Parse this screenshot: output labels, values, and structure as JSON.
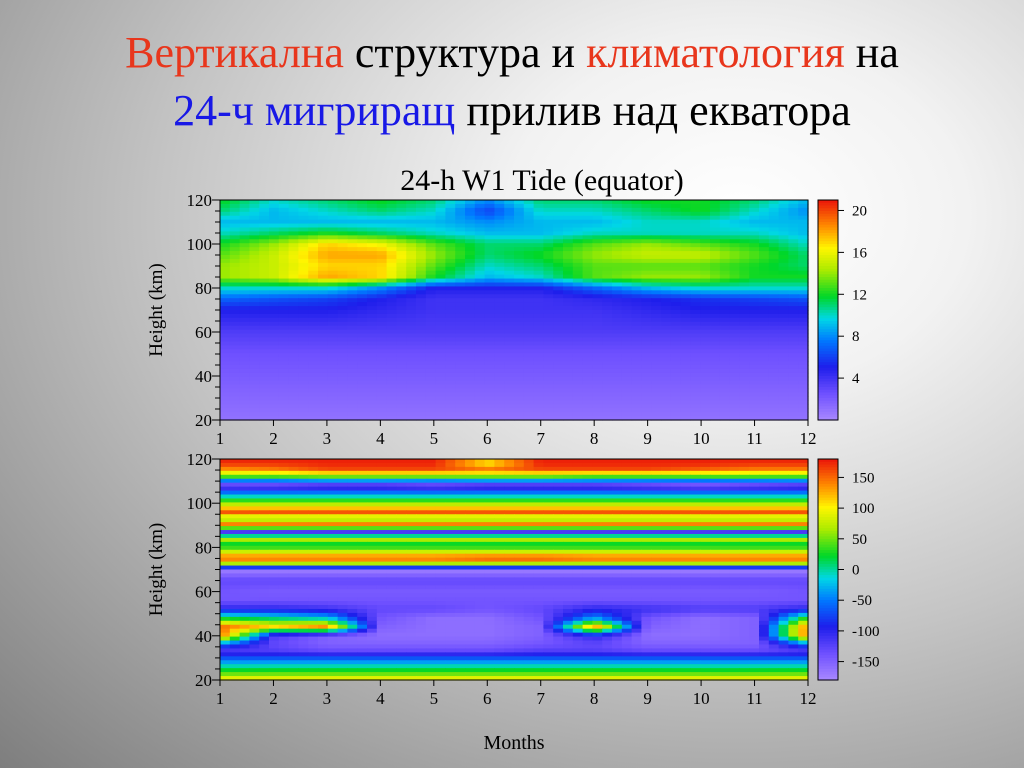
{
  "slide": {
    "title_line1": [
      {
        "text": "Вертикална",
        "color": "#e8361c"
      },
      {
        "text": " структура и ",
        "color": "#000000"
      },
      {
        "text": "климатология",
        "color": "#e8361c"
      },
      {
        "text": " на",
        "color": "#000000"
      }
    ],
    "title_line2": [
      {
        "text": "24-ч мигриращ",
        "color": "#1818e6"
      },
      {
        "text": " прилив над екватора",
        "color": "#000000"
      }
    ]
  },
  "chart_data": [
    {
      "type": "heatmap",
      "title": "24-h W1 Tide  (equator)",
      "xlabel": "",
      "ylabel": "Height  (km)",
      "x_ticks": [
        1,
        2,
        3,
        4,
        5,
        6,
        7,
        8,
        9,
        10,
        11,
        12
      ],
      "xlim": [
        1,
        12
      ],
      "y_ticks": [
        20,
        40,
        60,
        80,
        100,
        120
      ],
      "ylim": [
        20,
        120
      ],
      "colorbar": {
        "ticks": [
          4,
          8,
          12,
          16,
          20
        ],
        "range": [
          0,
          21
        ]
      },
      "quantity": "amplitude",
      "months": [
        1,
        2,
        3,
        4,
        5,
        6,
        7,
        8,
        9,
        10,
        11,
        12
      ],
      "heights": [
        20,
        30,
        40,
        50,
        60,
        70,
        75,
        80,
        85,
        90,
        95,
        100,
        105,
        110,
        115,
        120
      ],
      "values": [
        [
          1,
          1,
          1,
          1,
          1,
          1,
          1,
          1,
          1,
          1,
          1,
          1
        ],
        [
          1.5,
          1.5,
          1.5,
          1.5,
          1.5,
          1.5,
          1.5,
          1.5,
          1.5,
          1.5,
          1.5,
          1.5
        ],
        [
          2,
          2,
          2,
          2,
          2,
          2,
          2,
          2,
          2,
          2,
          2,
          2
        ],
        [
          2.5,
          2.5,
          2.5,
          2.5,
          2.5,
          2.5,
          2.5,
          2.5,
          2.5,
          2.5,
          2.5,
          2.5
        ],
        [
          3.5,
          3.5,
          3.5,
          3.5,
          3.5,
          3.5,
          3.5,
          3.5,
          3.5,
          3.5,
          3.5,
          3.5
        ],
        [
          5,
          5,
          5,
          4.5,
          4,
          4,
          4,
          4,
          4.5,
          5,
          5,
          5
        ],
        [
          7,
          6.5,
          6,
          5,
          4,
          4,
          4,
          4.5,
          5,
          5.5,
          6,
          6.5
        ],
        [
          10,
          10,
          10,
          8,
          5,
          5,
          5,
          7,
          9,
          10,
          10,
          10
        ],
        [
          14,
          15,
          18,
          17,
          12,
          9,
          10,
          13,
          14,
          14,
          12,
          12
        ],
        [
          14,
          15,
          17,
          17,
          13,
          10,
          11,
          13,
          13,
          13,
          12,
          11
        ],
        [
          13,
          15,
          18,
          18,
          14,
          11,
          12,
          14,
          15,
          15,
          13,
          11
        ],
        [
          12,
          14,
          17,
          16,
          13,
          11,
          11,
          13,
          14,
          13,
          12,
          10
        ],
        [
          10,
          11,
          12,
          11,
          10,
          9,
          9,
          10,
          10,
          10,
          10,
          9
        ],
        [
          9,
          9,
          9,
          9,
          9,
          8,
          9,
          9,
          10,
          10,
          9,
          9
        ],
        [
          11,
          9,
          10,
          11,
          10,
          6,
          10,
          10,
          11,
          12,
          10,
          8
        ],
        [
          12,
          10,
          11,
          12,
          11,
          8,
          11,
          11,
          12,
          12,
          11,
          9
        ]
      ]
    },
    {
      "type": "heatmap",
      "title": "",
      "xlabel": "Months",
      "ylabel": "Height  (km)",
      "x_ticks": [
        1,
        2,
        3,
        4,
        5,
        6,
        7,
        8,
        9,
        10,
        11,
        12
      ],
      "xlim": [
        1,
        12
      ],
      "y_ticks": [
        20,
        40,
        60,
        80,
        100,
        120
      ],
      "ylim": [
        20,
        120
      ],
      "colorbar": {
        "ticks": [
          150,
          100,
          50,
          0,
          -50,
          -100,
          -150
        ],
        "range": [
          -180,
          180
        ]
      },
      "quantity": "phase",
      "months": [
        1,
        2,
        3,
        4,
        5,
        6,
        7,
        8,
        9,
        10,
        11,
        12
      ],
      "heights": [
        20,
        22,
        26,
        30,
        33,
        36,
        40,
        44,
        48,
        52,
        56,
        60,
        65,
        70,
        72,
        75,
        78,
        81,
        84,
        87,
        90,
        93,
        96,
        100,
        104,
        108,
        112,
        115,
        118,
        120
      ],
      "values": [
        [
          110,
          110,
          110,
          110,
          110,
          110,
          110,
          110,
          110,
          110,
          110,
          110
        ],
        [
          60,
          60,
          60,
          60,
          60,
          60,
          60,
          60,
          60,
          60,
          60,
          60
        ],
        [
          0,
          0,
          0,
          0,
          0,
          0,
          0,
          0,
          0,
          0,
          0,
          0
        ],
        [
          -70,
          -70,
          -70,
          -70,
          -70,
          -70,
          -70,
          -70,
          -70,
          -70,
          -70,
          -70
        ],
        [
          -120,
          -120,
          -130,
          -130,
          -130,
          -130,
          -120,
          -120,
          -130,
          -130,
          -130,
          -120
        ],
        [
          -60,
          -130,
          -150,
          -150,
          -150,
          -150,
          -140,
          -130,
          -150,
          -150,
          -150,
          -60
        ],
        [
          150,
          -120,
          -150,
          -160,
          -160,
          -160,
          -150,
          -100,
          -160,
          -160,
          -150,
          150
        ],
        [
          150,
          110,
          140,
          -150,
          -160,
          -160,
          -150,
          140,
          -150,
          -160,
          -150,
          150
        ],
        [
          20,
          0,
          -20,
          -140,
          -160,
          -160,
          -140,
          -40,
          -140,
          -160,
          -150,
          40
        ],
        [
          -100,
          -100,
          -110,
          -130,
          -130,
          -140,
          -130,
          -100,
          -110,
          -120,
          -120,
          -100
        ],
        [
          -140,
          -140,
          -140,
          -140,
          -140,
          -140,
          -140,
          -140,
          -140,
          -140,
          -140,
          -140
        ],
        [
          -140,
          -145,
          -145,
          -145,
          -145,
          -145,
          -145,
          -145,
          -145,
          -145,
          -145,
          -140
        ],
        [
          -130,
          -130,
          -130,
          -130,
          -130,
          -130,
          -130,
          -130,
          -130,
          -130,
          -130,
          -130
        ],
        [
          -175,
          -175,
          -175,
          -175,
          -175,
          -175,
          -175,
          -175,
          -175,
          -175,
          -175,
          -175
        ],
        [
          40,
          40,
          40,
          40,
          40,
          40,
          40,
          40,
          40,
          40,
          40,
          40
        ],
        [
          160,
          160,
          160,
          160,
          160,
          170,
          170,
          160,
          160,
          160,
          160,
          160
        ],
        [
          80,
          80,
          80,
          80,
          80,
          80,
          80,
          80,
          80,
          80,
          80,
          80
        ],
        [
          10,
          10,
          10,
          10,
          10,
          10,
          10,
          10,
          10,
          10,
          10,
          10
        ],
        [
          80,
          80,
          80,
          80,
          80,
          80,
          80,
          80,
          80,
          80,
          80,
          80
        ],
        [
          -120,
          -120,
          -120,
          -120,
          -120,
          -120,
          -120,
          -120,
          -120,
          -120,
          -120,
          -120
        ],
        [
          160,
          160,
          160,
          160,
          160,
          160,
          160,
          160,
          160,
          160,
          160,
          160
        ],
        [
          50,
          50,
          50,
          50,
          50,
          50,
          50,
          50,
          50,
          50,
          50,
          50
        ],
        [
          160,
          160,
          160,
          160,
          160,
          160,
          160,
          160,
          160,
          160,
          160,
          160
        ],
        [
          60,
          60,
          60,
          60,
          60,
          60,
          60,
          60,
          60,
          60,
          60,
          60
        ],
        [
          -30,
          -30,
          -30,
          -30,
          -30,
          -30,
          -30,
          -30,
          -30,
          -30,
          -30,
          -30
        ],
        [
          -150,
          -150,
          -140,
          -140,
          -150,
          -140,
          -140,
          -140,
          -150,
          -160,
          -150,
          -140
        ],
        [
          40,
          40,
          50,
          50,
          50,
          50,
          50,
          40,
          40,
          40,
          40,
          40
        ],
        [
          130,
          140,
          160,
          160,
          160,
          150,
          160,
          160,
          160,
          150,
          140,
          140
        ],
        [
          170,
          170,
          175,
          175,
          175,
          100,
          175,
          175,
          175,
          175,
          170,
          170
        ],
        [
          175,
          175,
          175,
          175,
          175,
          120,
          175,
          175,
          175,
          175,
          175,
          175
        ]
      ]
    }
  ]
}
